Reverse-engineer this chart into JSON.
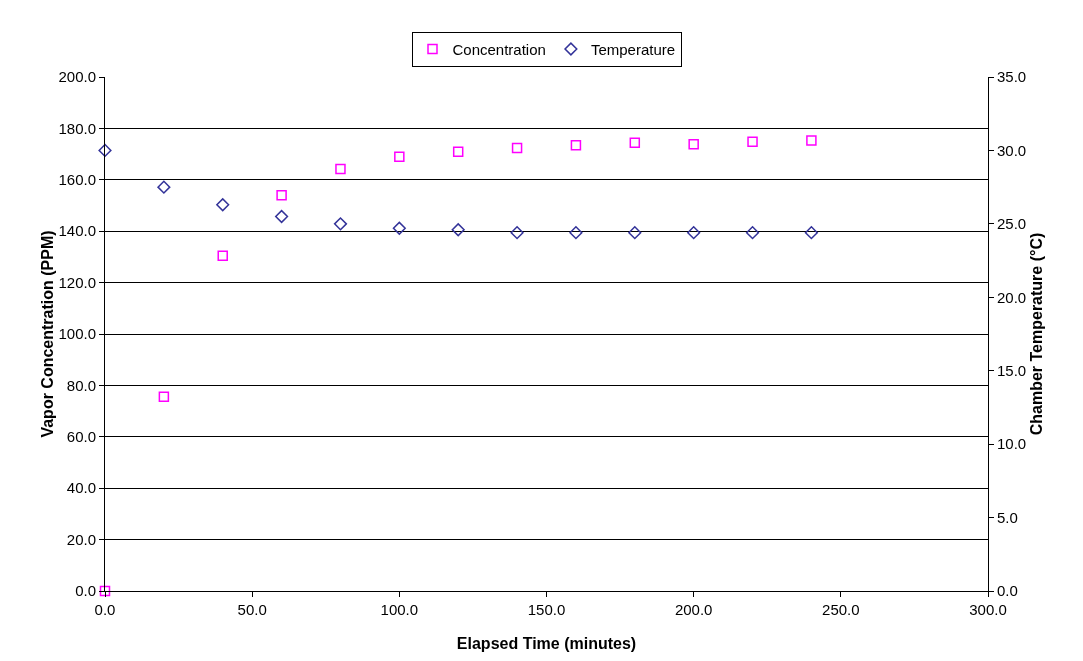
{
  "chart_data": {
    "type": "scatter",
    "xlabel": "Elapsed Time (minutes)",
    "ylabel": "Vapor Concentration (PPM)",
    "y2label": "Chamber Temperature (°C)",
    "x": [
      0,
      20,
      40,
      60,
      80,
      100,
      120,
      140,
      160,
      180,
      200,
      220,
      240
    ],
    "series": [
      {
        "name": "Concentration",
        "color": "#ff00ff",
        "marker": "square",
        "values": [
          0,
          75.6,
          130.4,
          154.0,
          164.2,
          169.0,
          170.9,
          172.4,
          173.4,
          174.4,
          173.8,
          174.8,
          175.3
        ]
      },
      {
        "name": "Temperature",
        "color": "#333399",
        "marker": "diamond",
        "axis": "y2",
        "values": [
          30.0,
          27.5,
          26.3,
          25.5,
          25.0,
          24.7,
          24.6,
          24.4,
          24.4,
          24.4,
          24.4,
          24.4,
          24.4
        ]
      }
    ],
    "xlim": [
      0,
      300
    ],
    "xticks": [
      {
        "value": 0,
        "label": "0.0"
      },
      {
        "value": 50,
        "label": "50.0"
      },
      {
        "value": 100,
        "label": "100.0"
      },
      {
        "value": 150,
        "label": "150.0"
      },
      {
        "value": 200,
        "label": "200.0"
      },
      {
        "value": 250,
        "label": "250.0"
      },
      {
        "value": 300,
        "label": "300.0"
      }
    ],
    "ylim": [
      0,
      200
    ],
    "yticks": [
      {
        "value": 0,
        "label": "0.0"
      },
      {
        "value": 20,
        "label": "20.0"
      },
      {
        "value": 40,
        "label": "40.0"
      },
      {
        "value": 60,
        "label": "60.0"
      },
      {
        "value": 80,
        "label": "80.0"
      },
      {
        "value": 100,
        "label": "100.0"
      },
      {
        "value": 120,
        "label": "120.0"
      },
      {
        "value": 140,
        "label": "140.0"
      },
      {
        "value": 160,
        "label": "160.0"
      },
      {
        "value": 180,
        "label": "180.0"
      },
      {
        "value": 200,
        "label": "200.0"
      }
    ],
    "y2lim": [
      0,
      35
    ],
    "y2ticks": [
      {
        "value": 0,
        "label": "0.0"
      },
      {
        "value": 5,
        "label": "5.0"
      },
      {
        "value": 10,
        "label": "10.0"
      },
      {
        "value": 15,
        "label": "15.0"
      },
      {
        "value": 20,
        "label": "20.0"
      },
      {
        "value": 25,
        "label": "25.0"
      },
      {
        "value": 30,
        "label": "30.0"
      },
      {
        "value": 35,
        "label": "35.0"
      }
    ],
    "grid": "y",
    "legend": "top"
  }
}
